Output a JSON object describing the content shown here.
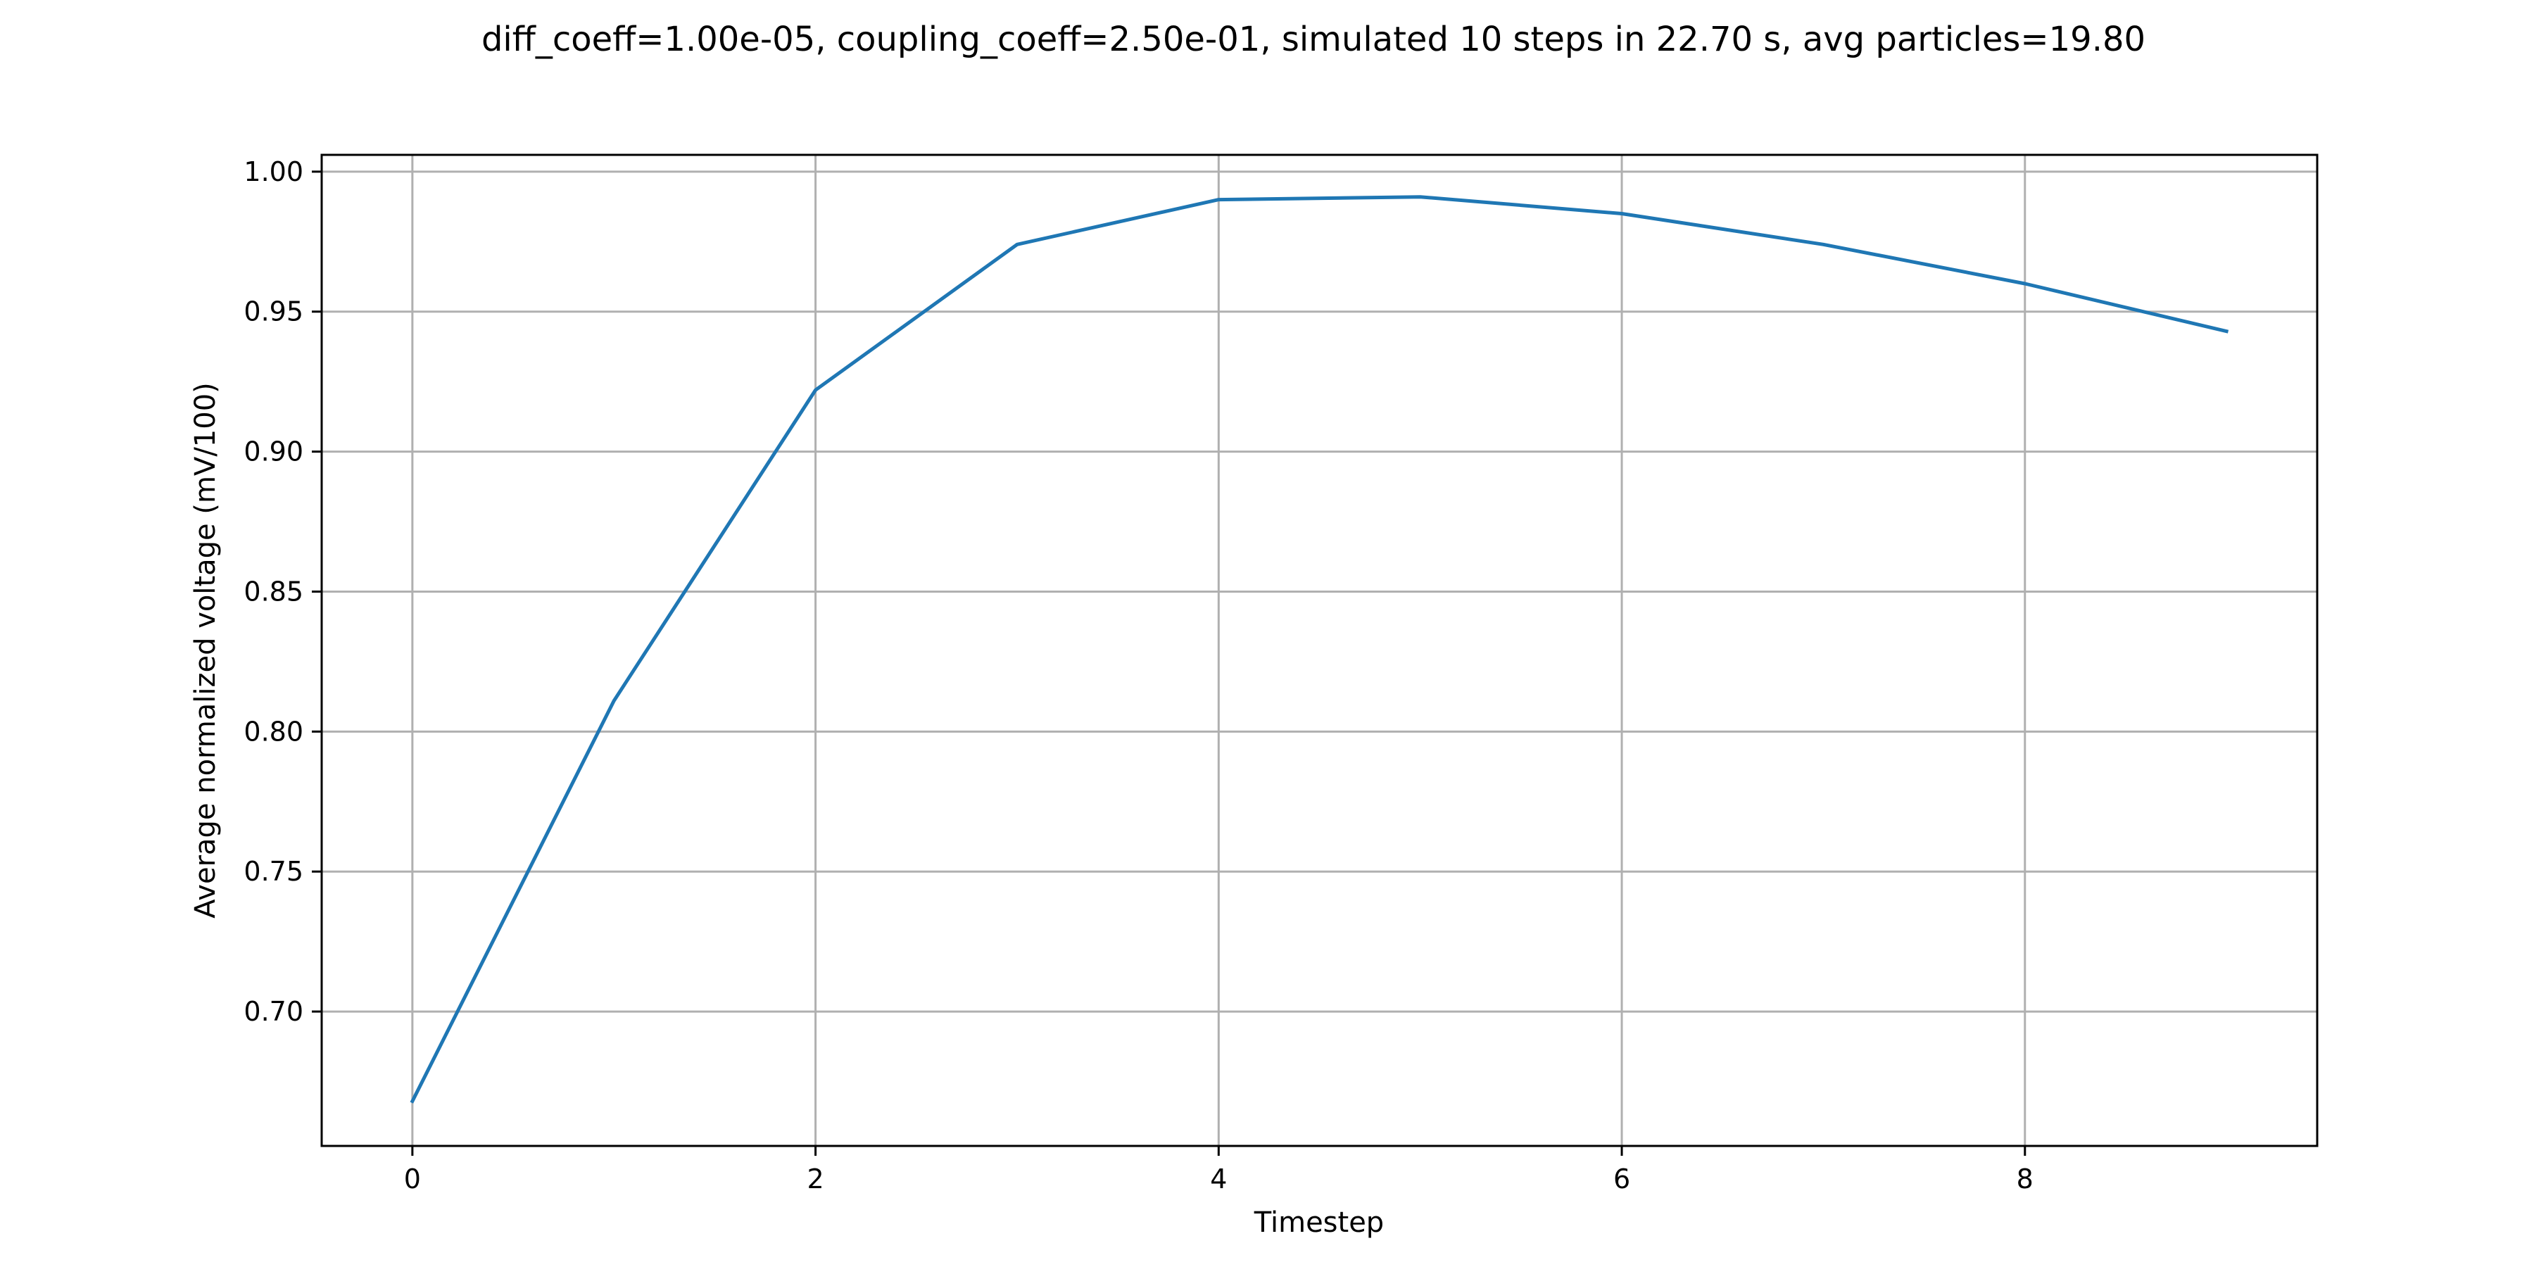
{
  "chart_data": {
    "type": "line",
    "title": "diff_coeff=1.00e-05, coupling_coeff=2.50e-01, simulated 10 steps in 22.70 s, avg particles=19.80",
    "xlabel": "Timestep",
    "ylabel": "Average normalized voltage (mV/100)",
    "xlim": [
      -0.45,
      9.45
    ],
    "ylim": [
      0.652,
      1.006
    ],
    "xticks": [
      0,
      2,
      4,
      6,
      8
    ],
    "xtick_labels": [
      "0",
      "2",
      "4",
      "6",
      "8"
    ],
    "yticks": [
      0.7,
      0.75,
      0.8,
      0.85,
      0.9,
      0.95,
      1.0
    ],
    "ytick_labels": [
      "0.70",
      "0.75",
      "0.80",
      "0.85",
      "0.90",
      "0.95",
      "1.00"
    ],
    "grid": true,
    "series": [
      {
        "color": "#1f77b4",
        "x": [
          0,
          1,
          2,
          3,
          4,
          5,
          6,
          7,
          8,
          9
        ],
        "y": [
          0.668,
          0.811,
          0.922,
          0.974,
          0.99,
          0.991,
          0.985,
          0.974,
          0.96,
          0.943
        ]
      }
    ]
  }
}
